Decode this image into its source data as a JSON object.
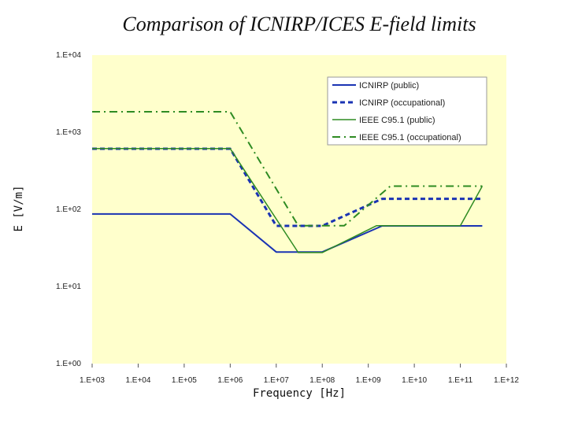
{
  "chart_data": {
    "type": "line",
    "title": "Comparison of ICNIRP/ICES E-field limits",
    "xlabel": "Frequency [Hz]",
    "ylabel": "E [V/m]",
    "x_scale": "log",
    "y_scale": "log",
    "xlim": [
      1000,
      1000000000000
    ],
    "ylim": [
      1,
      10000
    ],
    "x_ticks": [
      "1.E+03",
      "1.E+04",
      "1.E+05",
      "1.E+06",
      "1.E+07",
      "1.E+08",
      "1.E+09",
      "1.E+10",
      "1.E+11",
      "1.E+12"
    ],
    "y_ticks": [
      "1.E+00",
      "1.E+01",
      "1.E+02",
      "1.E+03",
      "1.E+04"
    ],
    "grid": false,
    "legend_position": "top-right",
    "background": "#ffffcc",
    "series": [
      {
        "name": "ICNIRP (public)",
        "color": "#1a33b3",
        "style": "solid",
        "points": [
          [
            1000,
            87
          ],
          [
            1000000,
            87
          ],
          [
            10000000,
            28
          ],
          [
            100000000,
            28
          ],
          [
            2000000000,
            61
          ],
          [
            300000000000,
            61
          ]
        ]
      },
      {
        "name": "ICNIRP (occupational)",
        "color": "#1a33b3",
        "style": "dashed",
        "points": [
          [
            1000,
            610
          ],
          [
            1000000,
            610
          ],
          [
            10000000,
            61
          ],
          [
            100000000,
            61
          ],
          [
            2000000000,
            137
          ],
          [
            300000000000,
            137
          ]
        ]
      },
      {
        "name": "IEEE C95.1 (public)",
        "color": "#2e8b22",
        "style": "solid",
        "points": [
          [
            1000,
            614
          ],
          [
            1000000,
            614
          ],
          [
            30000000,
            27.5
          ],
          [
            100000000,
            27.5
          ],
          [
            1500000000,
            61.4
          ],
          [
            100000000000,
            61.4
          ],
          [
            300000000000,
            200
          ]
        ]
      },
      {
        "name": "IEEE C95.1 (occupational)",
        "color": "#2e8b22",
        "style": "dashdot",
        "points": [
          [
            1000,
            1842
          ],
          [
            1000000,
            1842
          ],
          [
            30000000,
            61.4
          ],
          [
            300000000,
            61.4
          ],
          [
            3000000000,
            200
          ],
          [
            300000000000,
            200
          ]
        ]
      }
    ]
  }
}
